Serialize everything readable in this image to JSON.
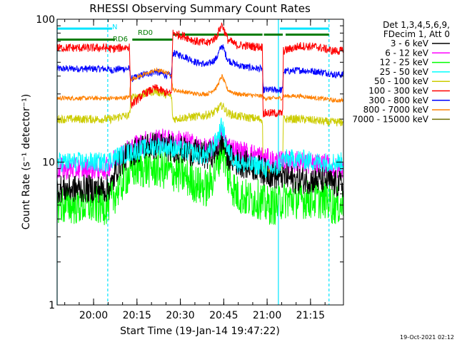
{
  "title": "RHESSI Observing Summary Count Rates",
  "footer_date": "19-Oct-2021 02:12",
  "chart_data": {
    "type": "line",
    "title": "RHESSI Observing Summary Count Rates",
    "xlabel": "Start Time (19-Jan-14 19:47:22)",
    "ylabel": "Count Rate (s⁻¹ detector⁻¹)",
    "x_unit": "minutes after 19:47:22",
    "xlim": [
      0,
      99
    ],
    "ylim": [
      1,
      100
    ],
    "y_scale": "log",
    "x_ticks": [
      {
        "x": 12.6,
        "label": "20:00"
      },
      {
        "x": 27.6,
        "label": "20:15"
      },
      {
        "x": 42.6,
        "label": "20:30"
      },
      {
        "x": 57.6,
        "label": "20:45"
      },
      {
        "x": 72.6,
        "label": "21:00"
      },
      {
        "x": 87.6,
        "label": "21:15"
      }
    ],
    "y_ticks": [
      {
        "y": 1,
        "label": "1"
      },
      {
        "y": 10,
        "label": "10"
      },
      {
        "y": 100,
        "label": "100"
      }
    ],
    "legend_header": [
      "Det 1,3,4,5,6,9,",
      "FDecim 1, Att 0"
    ],
    "legend_position": "right",
    "grid": false,
    "flags": [
      {
        "label": "N",
        "color": "#00e5ff",
        "segments": [
          [
            0,
            19
          ],
          [
            77,
            94
          ]
        ],
        "y": 86
      },
      {
        "label": "RD0",
        "color": "#007a00",
        "segments": [
          [
            40,
            71
          ],
          [
            71.5,
            78
          ],
          [
            79,
            94
          ]
        ],
        "y": 78
      },
      {
        "label": "RD6",
        "color": "#007a00",
        "segments": [
          [
            0,
            20
          ],
          [
            26,
            40
          ]
        ],
        "y": 72
      }
    ],
    "vertical_lines": [
      {
        "x": 0,
        "style": "solid",
        "color": "#00e5ff"
      },
      {
        "x": 17.5,
        "style": "dashed",
        "color": "#00e5ff"
      },
      {
        "x": 76.5,
        "style": "solid",
        "color": "#00e5ff"
      },
      {
        "x": 94,
        "style": "dashed",
        "color": "#00e5ff"
      }
    ],
    "series": [
      {
        "name": "3 - 6 keV",
        "color": "#000000",
        "noise": 0.1,
        "points": [
          [
            0,
            6.5
          ],
          [
            17,
            6.5
          ],
          [
            19,
            7
          ],
          [
            21,
            9.5
          ],
          [
            24,
            11
          ],
          [
            27,
            12
          ],
          [
            31,
            13
          ],
          [
            35,
            13
          ],
          [
            40,
            12.5
          ],
          [
            44,
            12
          ],
          [
            48,
            11.5
          ],
          [
            52,
            11
          ],
          [
            55,
            12
          ],
          [
            57,
            14
          ],
          [
            59,
            11
          ],
          [
            62,
            10
          ],
          [
            66,
            9.5
          ],
          [
            70,
            9
          ],
          [
            72,
            8.5
          ],
          [
            76,
            8
          ],
          [
            78,
            8
          ],
          [
            82,
            7.5
          ],
          [
            90,
            7.5
          ],
          [
            94,
            7.5
          ],
          [
            95,
            7
          ]
        ]
      },
      {
        "name": "6 - 12 keV",
        "color": "#ff00ff",
        "noise": 0.08,
        "points": [
          [
            0,
            9
          ],
          [
            17,
            9
          ],
          [
            19,
            10
          ],
          [
            21,
            11
          ],
          [
            24,
            12
          ],
          [
            27,
            13
          ],
          [
            31,
            14
          ],
          [
            35,
            14.5
          ],
          [
            40,
            14
          ],
          [
            44,
            14
          ],
          [
            48,
            13
          ],
          [
            52,
            12
          ],
          [
            55,
            13
          ],
          [
            57,
            16
          ],
          [
            59,
            13
          ],
          [
            62,
            12
          ],
          [
            66,
            11.5
          ],
          [
            70,
            11
          ],
          [
            72,
            10.5
          ],
          [
            76,
            10
          ],
          [
            78,
            10
          ],
          [
            84,
            10
          ],
          [
            90,
            9.5
          ],
          [
            94,
            9.5
          ],
          [
            95,
            9
          ]
        ]
      },
      {
        "name": "12 - 25 keV",
        "color": "#00ff00",
        "noise": 0.14,
        "points": [
          [
            0,
            5
          ],
          [
            17,
            5
          ],
          [
            19,
            5.5
          ],
          [
            21,
            6.5
          ],
          [
            24,
            8
          ],
          [
            27,
            9
          ],
          [
            31,
            9
          ],
          [
            35,
            9
          ],
          [
            40,
            8.5
          ],
          [
            44,
            8
          ],
          [
            48,
            7
          ],
          [
            52,
            6.5
          ],
          [
            55,
            9
          ],
          [
            57,
            13
          ],
          [
            59,
            8
          ],
          [
            62,
            6
          ],
          [
            66,
            5.5
          ],
          [
            70,
            5.5
          ],
          [
            72,
            5
          ],
          [
            76,
            5
          ],
          [
            78,
            5.5
          ],
          [
            84,
            5.5
          ],
          [
            90,
            5.5
          ],
          [
            94,
            5.5
          ],
          [
            95,
            5
          ]
        ]
      },
      {
        "name": "25 - 50 keV",
        "color": "#00ffff",
        "noise": 0.07,
        "points": [
          [
            0,
            10
          ],
          [
            17,
            10
          ],
          [
            19,
            10.5
          ],
          [
            21,
            11
          ],
          [
            24,
            11.5
          ],
          [
            27,
            12
          ],
          [
            31,
            12.5
          ],
          [
            35,
            13
          ],
          [
            40,
            12.5
          ],
          [
            44,
            12
          ],
          [
            48,
            11.5
          ],
          [
            52,
            11
          ],
          [
            55,
            14
          ],
          [
            57,
            18
          ],
          [
            59,
            12
          ],
          [
            62,
            10
          ],
          [
            66,
            9.5
          ],
          [
            70,
            9.5
          ],
          [
            72,
            9
          ],
          [
            76,
            9
          ],
          [
            78,
            10.5
          ],
          [
            84,
            10.5
          ],
          [
            90,
            10
          ],
          [
            94,
            10
          ],
          [
            95,
            10
          ]
        ]
      },
      {
        "name": "50 - 100 keV",
        "color": "#cccc00",
        "noise": 0.03,
        "points": [
          [
            0,
            20
          ],
          [
            17,
            20
          ],
          [
            19,
            20
          ],
          [
            22,
            21
          ],
          [
            25,
            21
          ],
          [
            25.5,
            28
          ],
          [
            30,
            30
          ],
          [
            34,
            31.5
          ],
          [
            37,
            30
          ],
          [
            39.5,
            29
          ],
          [
            40,
            20
          ],
          [
            44,
            20.5
          ],
          [
            50,
            21
          ],
          [
            54,
            22
          ],
          [
            57,
            25
          ],
          [
            59,
            22
          ],
          [
            62,
            21
          ],
          [
            66,
            20.5
          ],
          [
            70,
            20
          ],
          [
            71,
            20
          ],
          [
            71.2,
            9
          ],
          [
            76,
            9
          ],
          [
            78,
            9
          ],
          [
            78.2,
            20
          ],
          [
            84,
            20
          ],
          [
            90,
            19.5
          ],
          [
            94,
            19
          ],
          [
            95,
            19
          ]
        ]
      },
      {
        "name": "100 - 300 keV",
        "color": "#ff0000",
        "noise": 0.03,
        "points": [
          [
            0,
            63
          ],
          [
            17,
            63
          ],
          [
            19,
            62
          ],
          [
            22,
            63
          ],
          [
            25,
            64
          ],
          [
            25.5,
            25
          ],
          [
            30,
            30
          ],
          [
            34,
            33
          ],
          [
            37,
            31
          ],
          [
            39.5,
            30
          ],
          [
            40,
            80
          ],
          [
            44,
            76
          ],
          [
            48,
            70
          ],
          [
            52,
            68
          ],
          [
            55,
            75
          ],
          [
            57,
            92
          ],
          [
            59,
            72
          ],
          [
            62,
            66
          ],
          [
            66,
            65
          ],
          [
            70,
            64
          ],
          [
            71,
            64
          ],
          [
            71.2,
            22
          ],
          [
            76,
            22
          ],
          [
            78,
            22
          ],
          [
            78.2,
            60
          ],
          [
            84,
            65
          ],
          [
            90,
            64
          ],
          [
            94,
            61
          ],
          [
            95,
            60
          ]
        ]
      },
      {
        "name": "300 - 800 keV",
        "color": "#0000ff",
        "noise": 0.025,
        "points": [
          [
            0,
            45
          ],
          [
            17,
            45
          ],
          [
            19,
            44
          ],
          [
            22,
            45
          ],
          [
            25,
            45
          ],
          [
            25.5,
            38
          ],
          [
            30,
            41
          ],
          [
            34,
            43
          ],
          [
            37,
            41
          ],
          [
            39.5,
            40
          ],
          [
            40,
            58
          ],
          [
            44,
            55
          ],
          [
            48,
            50
          ],
          [
            52,
            48
          ],
          [
            55,
            53
          ],
          [
            57,
            66
          ],
          [
            59,
            52
          ],
          [
            62,
            48
          ],
          [
            66,
            46
          ],
          [
            70,
            45
          ],
          [
            71,
            45
          ],
          [
            71.2,
            32
          ],
          [
            76,
            32
          ],
          [
            78,
            32
          ],
          [
            78.2,
            43
          ],
          [
            84,
            44
          ],
          [
            90,
            43
          ],
          [
            94,
            42
          ],
          [
            95,
            41
          ]
        ]
      },
      {
        "name": "800 - 7000 keV",
        "color": "#ff8000",
        "noise": 0.015,
        "points": [
          [
            0,
            28
          ],
          [
            17,
            28
          ],
          [
            19,
            28
          ],
          [
            22,
            28
          ],
          [
            25,
            28.5
          ],
          [
            25.5,
            38
          ],
          [
            30,
            41
          ],
          [
            34,
            44
          ],
          [
            37,
            43
          ],
          [
            39.5,
            41
          ],
          [
            40,
            32
          ],
          [
            44,
            31
          ],
          [
            48,
            30
          ],
          [
            52,
            30
          ],
          [
            55,
            33
          ],
          [
            57,
            40
          ],
          [
            59,
            32
          ],
          [
            62,
            30
          ],
          [
            66,
            29.5
          ],
          [
            70,
            29
          ],
          [
            71,
            29
          ],
          [
            71.2,
            28
          ],
          [
            76,
            28
          ],
          [
            78,
            28
          ],
          [
            78.2,
            29
          ],
          [
            84,
            29
          ],
          [
            90,
            28
          ],
          [
            94,
            27.5
          ],
          [
            95,
            27
          ]
        ]
      },
      {
        "name": "7000 - 15000 keV",
        "color": "#6e6e00",
        "noise": 0.0,
        "points": []
      }
    ]
  }
}
